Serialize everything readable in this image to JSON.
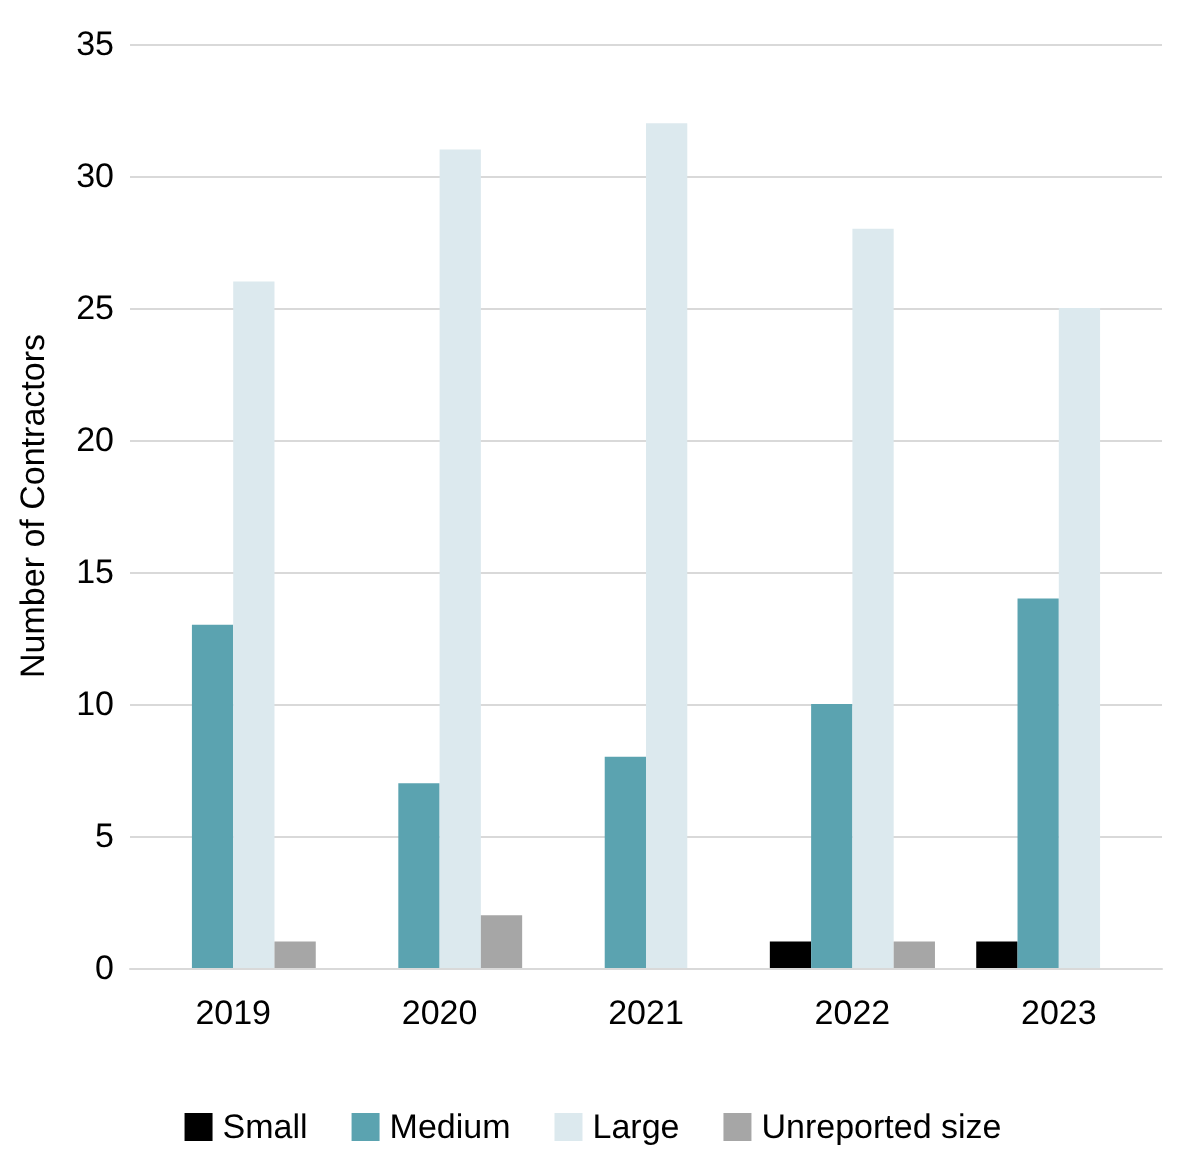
{
  "chart_data": {
    "type": "bar",
    "ylabel": "Number of Contractors",
    "categories": [
      "2019",
      "2020",
      "2021",
      "2022",
      "2023"
    ],
    "series": [
      {
        "name": "Small",
        "color": "#000000",
        "values": [
          0,
          0,
          0,
          1,
          1
        ]
      },
      {
        "name": "Medium",
        "color": "#5ba3b0",
        "values": [
          13,
          7,
          8,
          10,
          14
        ]
      },
      {
        "name": "Large",
        "color": "#dce9ee",
        "values": [
          26,
          31,
          32,
          28,
          25
        ]
      },
      {
        "name": "Unreported size",
        "color": "#a6a6a6",
        "values": [
          1,
          2,
          0,
          1,
          0
        ]
      }
    ],
    "ylim": [
      0,
      35
    ],
    "yticks": [
      0,
      5,
      10,
      15,
      20,
      25,
      30,
      35
    ],
    "grid": "y",
    "legend": "bottom"
  }
}
